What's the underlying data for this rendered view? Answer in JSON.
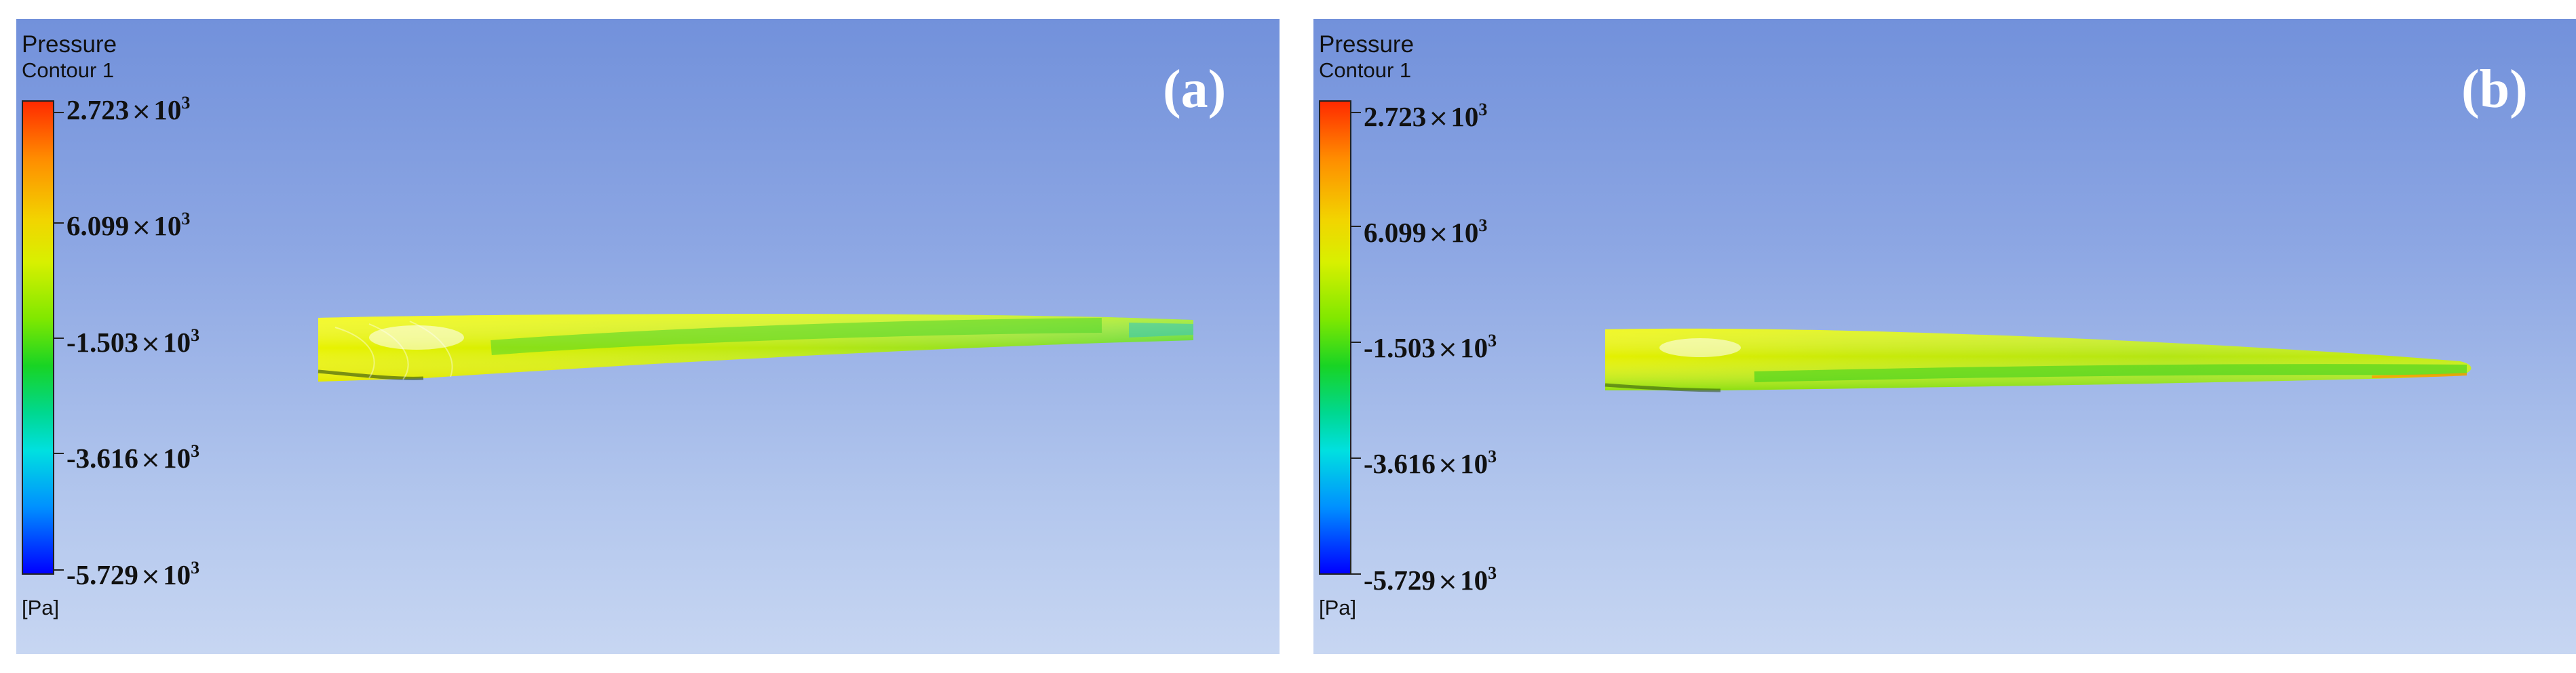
{
  "panels": [
    {
      "id": "a",
      "label": "(a)",
      "legend": {
        "title": "Pressure",
        "subtitle": "Contour 1",
        "unit": "[Pa]",
        "ticks": [
          {
            "mantissa": "2.723",
            "times": "×",
            "base": "10",
            "exponent": "3"
          },
          {
            "mantissa": "6.099",
            "times": "×",
            "base": "10",
            "exponent": "3"
          },
          {
            "mantissa": "-1.503",
            "times": "×",
            "base": "10",
            "exponent": "3"
          },
          {
            "mantissa": "-3.616",
            "times": "×",
            "base": "10",
            "exponent": "3"
          },
          {
            "mantissa": "-5.729",
            "times": "×",
            "base": "10",
            "exponent": "3"
          }
        ]
      }
    },
    {
      "id": "b",
      "label": "(b)",
      "legend": {
        "title": "Pressure",
        "subtitle": "Contour 1",
        "unit": "[Pa]",
        "ticks": [
          {
            "mantissa": "2.723",
            "times": "×",
            "base": "10",
            "exponent": "3"
          },
          {
            "mantissa": "6.099",
            "times": "×",
            "base": "10",
            "exponent": "3"
          },
          {
            "mantissa": "-1.503",
            "times": "×",
            "base": "10",
            "exponent": "3"
          },
          {
            "mantissa": "-3.616",
            "times": "×",
            "base": "10",
            "exponent": "3"
          },
          {
            "mantissa": "-5.729",
            "times": "×",
            "base": "10",
            "exponent": "3"
          }
        ]
      }
    }
  ],
  "colors": {
    "background_top": "#7291db",
    "background_bottom": "#c7d6f2",
    "colorbar_max": "#ff2a00",
    "colorbar_min": "#0000ff",
    "blade_yellow": "#e6f000",
    "blade_green": "#58e020"
  }
}
